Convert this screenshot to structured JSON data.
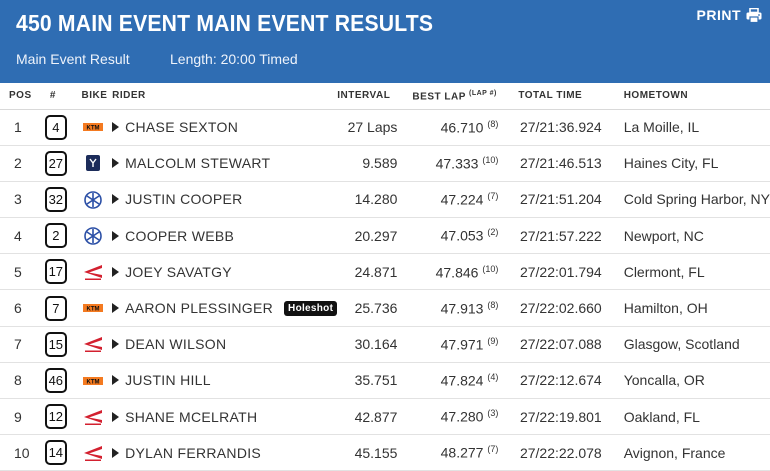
{
  "header": {
    "title": "450 MAIN EVENT MAIN EVENT RESULTS",
    "subtitle": "Main Event Result",
    "length": "Length: 20:00 Timed",
    "print_label": "PRINT",
    "print_icon": "printer-icon"
  },
  "colors": {
    "header_bg": "#2f6db3",
    "ktm": "#f47a20",
    "honda": "#d3202f",
    "yamaha": "#2b4fa6",
    "husqvarna": "#1c2c5a"
  },
  "columns": {
    "pos": "POS",
    "num": "#",
    "bike": "BIKE",
    "rider": "RIDER",
    "interval": "INTERVAL",
    "best_lap": "BEST LAP",
    "lap_num": "(LAP #)",
    "total_time": "TOTAL TIME",
    "hometown": "HOMETOWN"
  },
  "rows": [
    {
      "pos": "1",
      "num": "4",
      "bike": "ktm",
      "rider": "CHASE SEXTON",
      "badge": "",
      "interval": "27 Laps",
      "best": "46.710",
      "lap": "(8)",
      "total": "27/21:36.924",
      "hometown": "La Moille, IL"
    },
    {
      "pos": "2",
      "num": "27",
      "bike": "husqvarna",
      "rider": "MALCOLM STEWART",
      "badge": "",
      "interval": "9.589",
      "best": "47.333",
      "lap": "(10)",
      "total": "27/21:46.513",
      "hometown": "Haines City, FL"
    },
    {
      "pos": "3",
      "num": "32",
      "bike": "yamaha",
      "rider": "JUSTIN COOPER",
      "badge": "",
      "interval": "14.280",
      "best": "47.224",
      "lap": "(7)",
      "total": "27/21:51.204",
      "hometown": "Cold Spring Harbor, NY"
    },
    {
      "pos": "4",
      "num": "2",
      "bike": "yamaha",
      "rider": "COOPER WEBB",
      "badge": "",
      "interval": "20.297",
      "best": "47.053",
      "lap": "(2)",
      "total": "27/21:57.222",
      "hometown": "Newport, NC"
    },
    {
      "pos": "5",
      "num": "17",
      "bike": "honda",
      "rider": "JOEY SAVATGY",
      "badge": "",
      "interval": "24.871",
      "best": "47.846",
      "lap": "(10)",
      "total": "27/22:01.794",
      "hometown": "Clermont, FL"
    },
    {
      "pos": "6",
      "num": "7",
      "bike": "ktm",
      "rider": "AARON PLESSINGER",
      "badge": "Holeshot",
      "interval": "25.736",
      "best": "47.913",
      "lap": "(8)",
      "total": "27/22:02.660",
      "hometown": "Hamilton, OH"
    },
    {
      "pos": "7",
      "num": "15",
      "bike": "honda",
      "rider": "DEAN WILSON",
      "badge": "",
      "interval": "30.164",
      "best": "47.971",
      "lap": "(9)",
      "total": "27/22:07.088",
      "hometown": "Glasgow, Scotland"
    },
    {
      "pos": "8",
      "num": "46",
      "bike": "ktm",
      "rider": "JUSTIN HILL",
      "badge": "",
      "interval": "35.751",
      "best": "47.824",
      "lap": "(4)",
      "total": "27/22:12.674",
      "hometown": "Yoncalla, OR"
    },
    {
      "pos": "9",
      "num": "12",
      "bike": "honda",
      "rider": "SHANE MCELRATH",
      "badge": "",
      "interval": "42.877",
      "best": "47.280",
      "lap": "(3)",
      "total": "27/22:19.801",
      "hometown": "Oakland, FL"
    },
    {
      "pos": "10",
      "num": "14",
      "bike": "honda",
      "rider": "DYLAN FERRANDIS",
      "badge": "",
      "interval": "45.155",
      "best": "48.277",
      "lap": "(7)",
      "total": "27/22:22.078",
      "hometown": "Avignon, France"
    }
  ]
}
